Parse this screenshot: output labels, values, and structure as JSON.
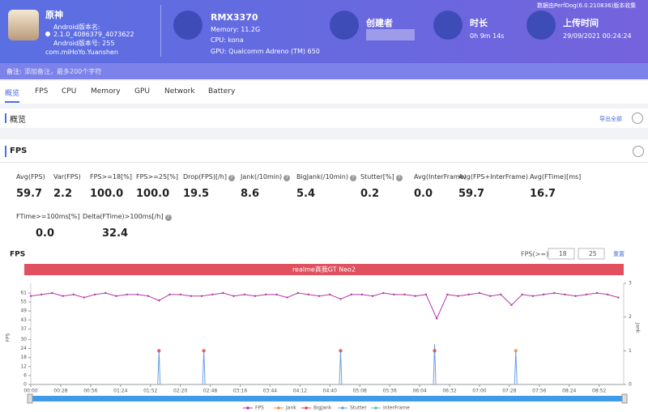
{
  "header": {
    "app_name": "原神",
    "android_version_name_label": "Android版本名:",
    "android_version_name": "2.1.0_4086379_4073622",
    "android_version_code": "Android版本号: 255",
    "package": "com.miHoYo.Yuanshen",
    "device": "RMX3370",
    "memory": "Memory: 11.2G",
    "cpu": "CPU: kona",
    "gpu": "GPU: Qualcomm Adreno (TM) 650",
    "creator_label": "创建者",
    "duration_label": "时长",
    "duration": "0h 9m 14s",
    "upload_label": "上传时间",
    "upload_time": "29/09/2021 00:24:24",
    "collected_by": "数据由PerfDog(6.0.210836)版本收集"
  },
  "note": {
    "label": "备注:",
    "placeholder": "添加备注，最多200个字符"
  },
  "tabs": [
    "概览",
    "FPS",
    "CPU",
    "Memory",
    "GPU",
    "Network",
    "Battery"
  ],
  "overview": {
    "title": "概览",
    "export": "导出全部"
  },
  "fps_section": {
    "title": "FPS",
    "metrics": [
      [
        {
          "label": "Avg(FPS)",
          "value": "59.7"
        },
        {
          "label": "Var(FPS)",
          "value": "2.2"
        },
        {
          "label": "FPS>=18[%]",
          "value": "100.0"
        },
        {
          "label": "FPS>=25[%]",
          "value": "100.0"
        },
        {
          "label": "Drop(FPS)[/h]",
          "value": "19.5",
          "help": true
        },
        {
          "label": "Jank(/10min)",
          "value": "8.6",
          "help": true
        },
        {
          "label": "BigJank(/10min)",
          "value": "5.4",
          "help": true
        },
        {
          "label": "Stutter[%]",
          "value": "0.2",
          "help": true
        },
        {
          "label": "Avg(InterFrame)",
          "value": "0.0"
        },
        {
          "label": "Avg(FPS+InterFrame)",
          "value": "59.7"
        },
        {
          "label": "Avg(FTime)[ms]",
          "value": "16.7"
        }
      ],
      [
        {
          "label": "FTime>=100ms[%]",
          "value": "0.0"
        },
        {
          "label": "Delta(FTime)>100ms[/h]",
          "value": "32.4",
          "help": true
        }
      ]
    ]
  },
  "chart_data": {
    "type": "line",
    "title": "FPS",
    "threshold_label": "FPS(>=)",
    "thresholds": [
      18,
      25
    ],
    "reset": "重置",
    "device_banner": "realme真我GT Neo2",
    "ylabel": "FPS",
    "y2label": "Jank",
    "xlim": [
      0,
      555
    ],
    "xticks": [
      {
        "value": 0,
        "label": "00:00"
      },
      {
        "value": 28,
        "label": "00:28"
      },
      {
        "value": 56,
        "label": "00:56"
      },
      {
        "value": 84,
        "label": "01:24"
      },
      {
        "value": 112,
        "label": "01:52"
      },
      {
        "value": 140,
        "label": "02:20"
      },
      {
        "value": 168,
        "label": "02:48"
      },
      {
        "value": 196,
        "label": "03:16"
      },
      {
        "value": 224,
        "label": "03:44"
      },
      {
        "value": 252,
        "label": "04:12"
      },
      {
        "value": 280,
        "label": "04:40"
      },
      {
        "value": 308,
        "label": "05:08"
      },
      {
        "value": 336,
        "label": "05:36"
      },
      {
        "value": 364,
        "label": "06:04"
      },
      {
        "value": 392,
        "label": "06:32"
      },
      {
        "value": 420,
        "label": "07:00"
      },
      {
        "value": 448,
        "label": "07:28"
      },
      {
        "value": 476,
        "label": "07:56"
      },
      {
        "value": 504,
        "label": "08:24"
      },
      {
        "value": 532,
        "label": "08:52"
      }
    ],
    "ylim": [
      0,
      61
    ],
    "yticks": [
      0,
      6,
      12,
      18,
      24,
      30,
      37,
      43,
      49,
      55,
      61
    ],
    "y2lim": [
      0,
      3
    ],
    "y2ticks": [
      0,
      1,
      2,
      3
    ],
    "series": [
      {
        "name": "FPS",
        "color": "#b03aa8",
        "style": "line",
        "x": [
          0,
          10,
          20,
          30,
          40,
          50,
          60,
          70,
          80,
          90,
          100,
          110,
          120,
          130,
          140,
          150,
          160,
          170,
          180,
          190,
          200,
          210,
          220,
          230,
          240,
          250,
          260,
          270,
          280,
          290,
          300,
          310,
          320,
          330,
          340,
          350,
          360,
          370,
          380,
          390,
          400,
          410,
          420,
          430,
          440,
          450,
          460,
          470,
          480,
          490,
          500,
          510,
          520,
          530,
          540,
          550
        ],
        "values": [
          59,
          60,
          61,
          59,
          60,
          58,
          60,
          61,
          59,
          60,
          60,
          59,
          56,
          60,
          60,
          59,
          59,
          60,
          61,
          59,
          60,
          59,
          60,
          60,
          58,
          61,
          60,
          59,
          60,
          57,
          60,
          60,
          59,
          61,
          60,
          60,
          59,
          60,
          44,
          60,
          59,
          60,
          61,
          59,
          60,
          53,
          60,
          59,
          60,
          61,
          60,
          59,
          60,
          61,
          60,
          58
        ]
      },
      {
        "name": "Jank",
        "color": "#f08a3c",
        "style": "dot",
        "axis": "y2",
        "x": [
          454
        ],
        "values": [
          1
        ]
      },
      {
        "name": "BigJank",
        "color": "#e0404a",
        "style": "dot",
        "axis": "y2",
        "x": [
          120,
          162,
          290,
          378
        ],
        "values": [
          1,
          1,
          1,
          1
        ]
      },
      {
        "name": "Stutter",
        "color": "#6a9fe0",
        "style": "spike",
        "axis": "y2",
        "x": [
          120,
          162,
          290,
          378,
          454
        ],
        "values": [
          1,
          1,
          1,
          1.2,
          1
        ]
      },
      {
        "name": "InterFrame",
        "color": "#4cc8b8",
        "style": "line",
        "x": [],
        "values": []
      }
    ]
  }
}
